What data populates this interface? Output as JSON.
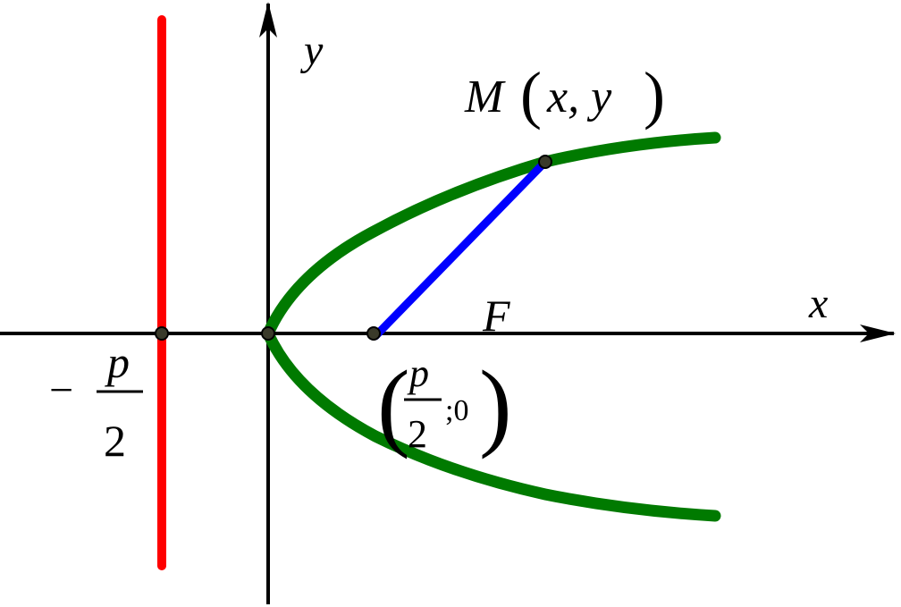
{
  "axes": {
    "x_label": "x",
    "y_label": "y"
  },
  "point_m": {
    "label": "M",
    "open": "(",
    "coords": "x, y",
    "close": ")"
  },
  "focus": {
    "label": "F",
    "coord_open": "(",
    "numerator": "p",
    "denominator": "2",
    "rest": ";0",
    "coord_close": ")"
  },
  "directrix": {
    "sign": "−",
    "numerator": "p",
    "denominator": "2"
  }
}
